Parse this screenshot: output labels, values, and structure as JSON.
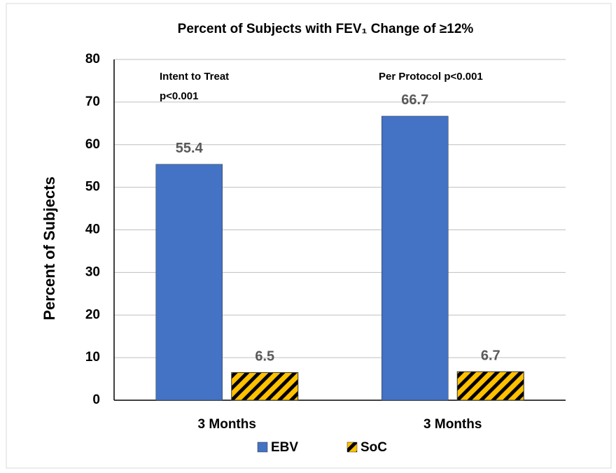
{
  "chart_data": {
    "type": "bar",
    "title": "Percent of Subjects with FEV₁ Change of ≥12%",
    "y_label": "Percent of Subjects",
    "annotations": [
      "Intent to Treat",
      "p<0.001",
      "Per Protocol p<0.001"
    ],
    "categories": [
      "3 Months",
      "3 Months"
    ],
    "series": [
      {
        "name": "EBV",
        "color": "#4472c4",
        "values": [
          55.4,
          66.7
        ]
      },
      {
        "name": "SoC",
        "color": "#ffc000",
        "hatch": true,
        "values": [
          6.5,
          6.7
        ]
      }
    ],
    "ylim": [
      0,
      80
    ],
    "yticks": [
      0,
      10,
      20,
      30,
      40,
      50,
      60,
      70,
      80
    ],
    "grid": true
  }
}
